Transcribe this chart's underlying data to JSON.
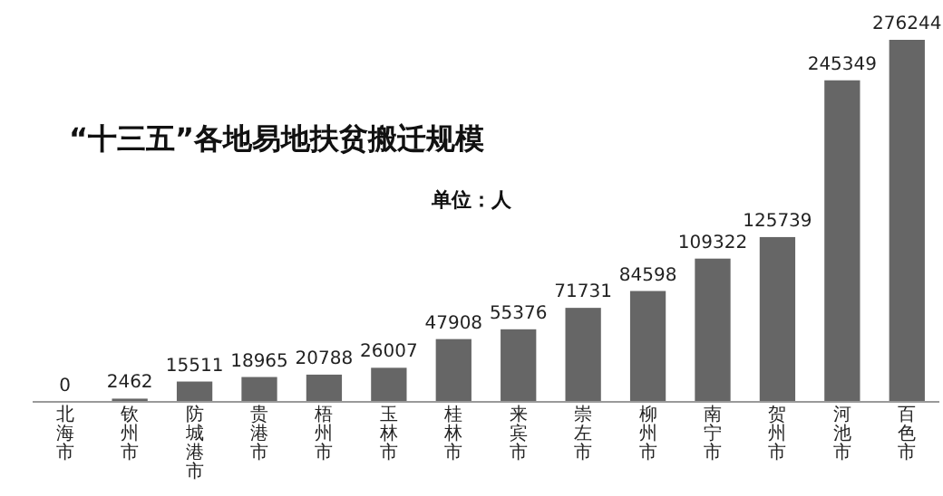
{
  "chart_data": {
    "type": "bar",
    "title": "“十三五”各地易地扶贫搬迁规模",
    "annotations": [
      "单位：人"
    ],
    "categories": [
      "北海市",
      "钦州市",
      "防城港市",
      "贵港市",
      "梧州市",
      "玉林市",
      "桂林市",
      "来宾市",
      "崇左市",
      "柳州市",
      "南宁市",
      "贺州市",
      "河池市",
      "百色市"
    ],
    "values": [
      0,
      2462,
      15511,
      18965,
      20788,
      26007,
      47908,
      55376,
      71731,
      84598,
      109322,
      125739,
      245349,
      276244
    ],
    "color": "#666666",
    "data_labels": true
  }
}
